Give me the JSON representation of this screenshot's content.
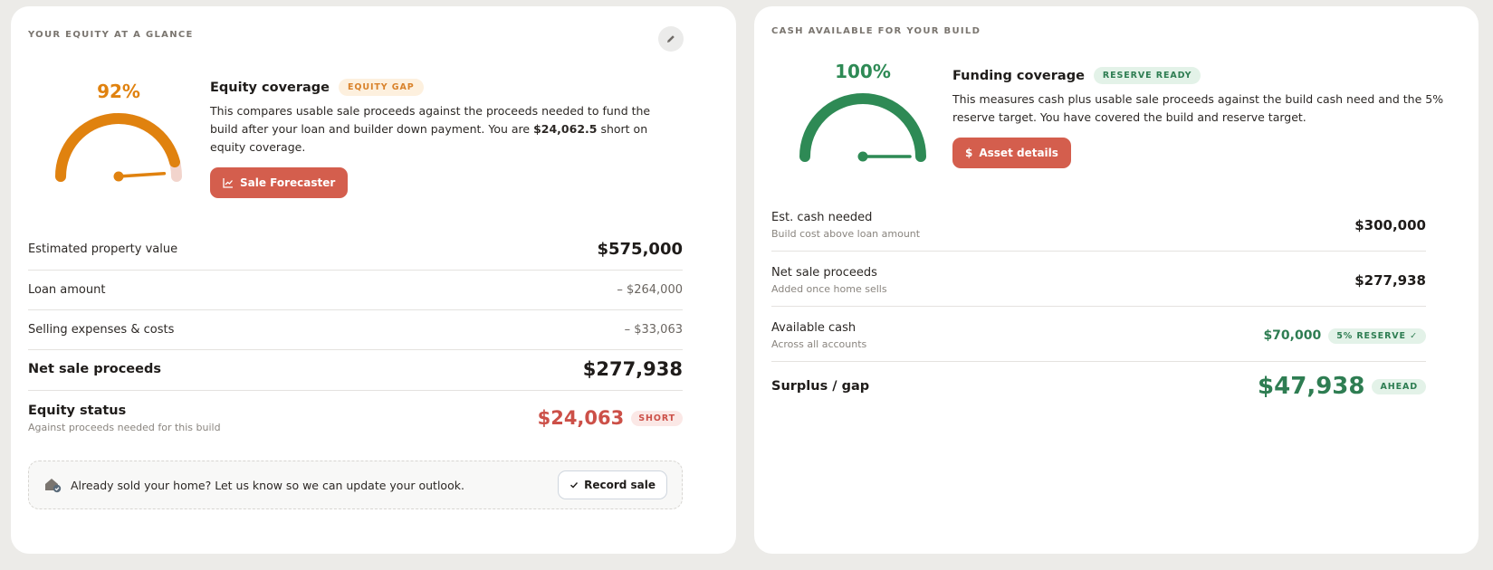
{
  "equity": {
    "kicker": "YOUR EQUITY AT A GLANCE",
    "gauge_percent": "92%",
    "gauge_value": 0.92,
    "coverage_title": "Equity coverage",
    "coverage_badge": "EQUITY GAP",
    "desc_part1": "This compares usable sale proceeds against the proceeds needed to fund the build after your loan and builder down payment. You are ",
    "desc_amount": "$24,062.5",
    "desc_part2": " short on equity coverage.",
    "cta_label": "Sale Forecaster",
    "rows": {
      "property_label": "Estimated property value",
      "property_value": "$575,000",
      "loan_label": "Loan amount",
      "loan_value": "– $264,000",
      "selling_label": "Selling expenses & costs",
      "selling_value": "– $33,063",
      "net_label": "Net sale proceeds",
      "net_value": "$277,938",
      "status_label": "Equity status",
      "status_sub": "Against proceeds needed for this build",
      "status_value": "$24,063",
      "status_badge": "SHORT"
    },
    "callout_text": "Already sold your home? Let us know so we can update your outlook.",
    "record_label": "Record sale"
  },
  "cash": {
    "kicker": "CASH AVAILABLE FOR YOUR BUILD",
    "gauge_percent": "100%",
    "gauge_value": 1.0,
    "coverage_title": "Funding coverage",
    "coverage_badge": "RESERVE READY",
    "desc": "This measures cash plus usable sale proceeds against the build cash need and the 5% reserve target. You have covered the build and reserve target.",
    "cta_label": "Asset details",
    "rows": {
      "need_label": "Est. cash needed",
      "need_sub": "Build cost above loan amount",
      "need_value": "$300,000",
      "net_label": "Net sale proceeds",
      "net_sub": "Added once home sells",
      "net_value": "$277,938",
      "avail_label": "Available cash",
      "avail_sub": "Across all accounts",
      "avail_value": "$70,000",
      "avail_badge": "5% RESERVE ✓",
      "surplus_label": "Surplus / gap",
      "surplus_value": "$47,938",
      "surplus_badge": "AHEAD"
    }
  },
  "colors": {
    "equity_gauge": "#e0820f",
    "equity_gauge_track": "#f2d4cc",
    "cash_gauge": "#2e8a55",
    "cta": "#d45e4d",
    "negative": "#cc5048",
    "positive": "#2e7d52"
  },
  "icons": {
    "edit": "pencil-icon",
    "sale_forecaster": "chart-line-icon",
    "asset_details": "dollar-icon",
    "callout": "home-check-icon",
    "record": "check-icon"
  }
}
